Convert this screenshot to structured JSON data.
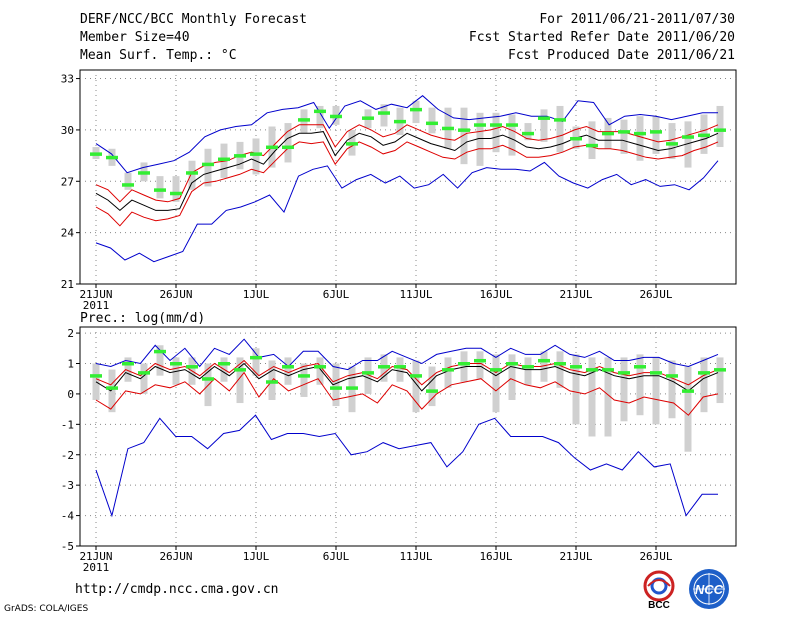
{
  "header": {
    "title": "DERF/NCC/BCC Monthly Forecast",
    "member_size": "Member Size=40",
    "variable": "Mean Surf. Temp.: °C",
    "period": "For 2011/06/21-2011/07/30",
    "refer_date": "Fcst Started Refer Date 2011/06/20",
    "produced_date": "Fcst Produced Date 2011/06/21"
  },
  "footer": {
    "url": "http://cmdp.ncc.cma.gov.cn",
    "credit": "GrADS: COLA/IGES",
    "logo_bcc": "BCC",
    "logo_ncc": "NCC"
  },
  "colors": {
    "ens_mean": "#000000",
    "spread": "#dd0000",
    "extremes": "#0000cc",
    "box": "#d0d0d0",
    "median": "#33ee33",
    "grid": "#888888"
  },
  "chart_data": [
    {
      "type": "line",
      "title": "Mean Surf. Temp.: °C",
      "x_tick_labels": [
        "21JUN",
        "26JUN",
        "1JUL",
        "6JUL",
        "11JUL",
        "16JUL",
        "21JUL",
        "26JUL"
      ],
      "x_tick_days": [
        0,
        5,
        10,
        15,
        20,
        25,
        30,
        35
      ],
      "x_sub_label": "2011",
      "days": 40,
      "ylim": [
        21,
        33.5
      ],
      "yticks": [
        21,
        24,
        27,
        30,
        33
      ],
      "series": [
        {
          "name": "mean",
          "values": [
            26.3,
            25.9,
            25.3,
            25.9,
            25.6,
            25.3,
            25.3,
            25.4,
            26.9,
            27.4,
            27.6,
            27.8,
            28.0,
            28.3,
            28.0,
            28.8,
            29.5,
            29.8,
            29.8,
            29.9,
            28.5,
            29.4,
            29.8,
            29.6,
            29.1,
            29.3,
            29.8,
            29.5,
            29.2,
            29.0,
            28.8,
            29.3,
            29.5,
            29.5,
            29.7,
            29.4,
            29.0,
            28.9,
            29.0,
            29.2,
            29.5,
            29.7,
            29.4,
            29.4,
            29.4,
            29.2,
            29.0,
            28.8,
            28.9,
            29.1,
            29.3,
            29.5,
            29.8
          ]
        },
        {
          "name": "upper",
          "values": [
            26.8,
            26.5,
            25.8,
            26.5,
            26.2,
            25.9,
            25.8,
            26.0,
            27.5,
            27.9,
            28.1,
            28.2,
            28.5,
            28.7,
            28.5,
            29.2,
            29.9,
            30.3,
            30.3,
            30.3,
            29.0,
            29.9,
            30.3,
            30.0,
            29.6,
            29.8,
            30.3,
            30.0,
            29.7,
            29.5,
            29.4,
            29.8,
            29.9,
            30.0,
            30.2,
            29.9,
            29.5,
            29.4,
            29.5,
            29.7,
            30.0,
            30.2,
            29.9,
            29.9,
            29.9,
            29.7,
            29.5,
            29.3,
            29.4,
            29.6,
            29.8,
            30.0,
            30.3
          ]
        },
        {
          "name": "lower",
          "values": [
            25.5,
            25.1,
            24.4,
            25.2,
            24.9,
            24.7,
            24.8,
            25.0,
            26.4,
            26.9,
            27.0,
            27.2,
            27.4,
            27.7,
            27.5,
            28.2,
            28.9,
            29.3,
            29.2,
            29.3,
            28.0,
            28.9,
            29.3,
            29.0,
            28.6,
            28.8,
            29.3,
            29.0,
            28.7,
            28.4,
            28.3,
            28.7,
            28.9,
            28.9,
            29.1,
            28.8,
            28.4,
            28.4,
            28.5,
            28.7,
            29.0,
            29.1,
            28.9,
            28.9,
            28.8,
            28.6,
            28.4,
            28.3,
            28.4,
            28.5,
            28.8,
            29.0,
            29.3
          ]
        }
      ],
      "max_line": [
        29.2,
        28.6,
        27.5,
        27.8,
        28.0,
        28.2,
        28.7,
        29.6,
        30.0,
        30.2,
        30.3,
        31.0,
        31.2,
        31.3,
        31.6,
        30.1,
        31.4,
        31.7,
        31.2,
        31.5,
        31.3,
        32.0,
        31.2,
        30.7,
        30.6,
        30.7,
        30.8,
        31.0,
        30.8,
        30.8,
        30.5,
        31.7,
        31.6,
        30.3,
        30.8,
        30.9,
        30.8,
        30.6,
        30.8,
        31.0,
        31.0
      ],
      "min_line": [
        23.4,
        23.1,
        22.4,
        22.8,
        22.3,
        22.6,
        22.9,
        24.5,
        24.5,
        25.3,
        25.5,
        25.8,
        26.2,
        25.2,
        27.3,
        27.7,
        27.9,
        26.6,
        27.1,
        27.4,
        26.9,
        27.3,
        26.6,
        26.8,
        27.4,
        26.6,
        27.5,
        27.8,
        27.7,
        27.7,
        27.6,
        28.1,
        27.3,
        26.9,
        26.6,
        27.1,
        27.4,
        26.8,
        27.1,
        26.7,
        26.8,
        26.5,
        27.2,
        28.2
      ],
      "medians": [
        28.6,
        28.4,
        26.8,
        27.5,
        26.5,
        26.3,
        27.5,
        28.0,
        28.3,
        28.5,
        28.6,
        29.0,
        29.0,
        30.6,
        31.1,
        30.8,
        29.2,
        30.7,
        31.0,
        30.5,
        31.2,
        30.4,
        30.1,
        30.0,
        30.3,
        30.3,
        30.3,
        29.8,
        30.7,
        30.6,
        29.5,
        29.1,
        29.8,
        29.9,
        29.8,
        29.9,
        29.2,
        29.6,
        29.7,
        30.0
      ],
      "box_low": [
        28.3,
        27.9,
        26.5,
        27.0,
        26.0,
        25.8,
        26.5,
        26.7,
        27.2,
        27.7,
        27.4,
        27.8,
        28.1,
        29.8,
        30.1,
        30.3,
        28.5,
        30.1,
        30.2,
        29.7,
        30.4,
        29.8,
        28.9,
        28.0,
        27.9,
        28.7,
        28.5,
        29.4,
        29.3,
        28.7,
        28.9,
        28.3,
        28.9,
        28.6,
        28.2,
        28.6,
        28.3,
        27.8,
        28.6,
        29.0
      ],
      "box_high": [
        29.0,
        28.9,
        27.5,
        28.1,
        27.3,
        27.3,
        28.2,
        28.9,
        29.2,
        29.3,
        29.5,
        30.2,
        30.4,
        31.2,
        31.4,
        31.4,
        30.0,
        31.2,
        31.5,
        31.3,
        31.7,
        31.3,
        31.3,
        31.3,
        31.0,
        31.0,
        30.9,
        30.4,
        31.2,
        31.4,
        30.2,
        30.5,
        30.7,
        30.6,
        30.8,
        30.8,
        30.4,
        30.5,
        30.9,
        31.4
      ]
    },
    {
      "type": "line",
      "title": "Prec.: log(mm/d)",
      "x_tick_labels": [
        "21JUN",
        "26JUN",
        "1JUL",
        "6JUL",
        "11JUL",
        "16JUL",
        "21JUL",
        "26JUL"
      ],
      "x_tick_days": [
        0,
        5,
        10,
        15,
        20,
        25,
        30,
        35
      ],
      "x_sub_label": "2011",
      "days": 40,
      "ylim": [
        -5,
        2.2
      ],
      "yticks": [
        -5,
        -4,
        -3,
        -2,
        -1,
        0,
        1,
        2
      ],
      "series": [
        {
          "name": "mean",
          "values": [
            0.4,
            0.1,
            0.7,
            0.5,
            0.9,
            0.7,
            0.8,
            0.5,
            0.9,
            0.6,
            1.0,
            0.5,
            0.8,
            0.6,
            0.8,
            0.9,
            0.3,
            0.5,
            0.6,
            0.4,
            0.8,
            0.7,
            0.1,
            0.6,
            0.8,
            0.9,
            0.9,
            0.6,
            0.9,
            0.8,
            0.8,
            0.9,
            0.7,
            0.6,
            0.8,
            0.6,
            0.5,
            0.6,
            0.6,
            0.4,
            0.1,
            0.5,
            0.7
          ]
        },
        {
          "name": "upper",
          "values": [
            0.5,
            0.3,
            0.8,
            0.6,
            1.0,
            0.8,
            0.9,
            0.6,
            1.0,
            0.7,
            1.1,
            0.6,
            0.9,
            0.7,
            0.9,
            1.0,
            0.4,
            0.6,
            0.7,
            0.5,
            0.9,
            0.8,
            0.3,
            0.7,
            0.9,
            1.0,
            1.0,
            0.7,
            1.0,
            0.9,
            0.9,
            1.0,
            0.8,
            0.7,
            0.9,
            0.7,
            0.6,
            0.7,
            0.7,
            0.5,
            0.3,
            0.6,
            0.8
          ]
        },
        {
          "name": "lower",
          "values": [
            -0.2,
            -0.5,
            0.1,
            0.0,
            0.3,
            0.2,
            0.4,
            0.0,
            0.5,
            0.1,
            0.7,
            -0.1,
            0.5,
            0.1,
            0.3,
            0.5,
            -0.2,
            -0.1,
            0.0,
            -0.3,
            0.3,
            0.1,
            -0.5,
            0.0,
            0.3,
            0.4,
            0.5,
            0.1,
            0.5,
            0.3,
            0.2,
            0.4,
            0.1,
            0.0,
            0.2,
            -0.2,
            -0.3,
            -0.1,
            -0.2,
            -0.3,
            -0.7,
            -0.1,
            0.0
          ]
        },
        {
          "name": "max",
          "values": [
            1.0,
            0.9,
            1.1,
            1.0,
            1.6,
            1.1,
            1.5,
            0.9,
            1.5,
            1.3,
            1.8,
            1.2,
            1.3,
            0.9,
            1.4,
            1.4,
            0.9,
            0.8,
            1.1,
            1.1,
            1.4,
            1.2,
            1.0,
            1.3,
            1.4,
            1.5,
            1.5,
            1.2,
            1.5,
            1.3,
            1.3,
            1.6,
            1.3,
            1.2,
            1.4,
            1.1,
            1.1,
            1.2,
            1.2,
            1.0,
            0.9,
            1.1,
            1.3
          ]
        },
        {
          "name": "min",
          "values": [
            -2.5,
            -4.0,
            -1.8,
            -1.6,
            -0.8,
            -1.4,
            -1.4,
            -1.8,
            -1.3,
            -1.2,
            -0.7,
            -1.5,
            -1.3,
            -1.3,
            -1.4,
            -1.3,
            -2.0,
            -1.9,
            -1.6,
            -1.8,
            -1.7,
            -1.6,
            -2.4,
            -1.9,
            -1.0,
            -0.8,
            -1.4,
            -1.4,
            -1.4,
            -1.6,
            -2.1,
            -2.5,
            -2.3,
            -2.5,
            -1.9,
            -2.4,
            -2.3,
            -4.0,
            -3.3,
            -3.3
          ]
        }
      ],
      "medians": [
        0.6,
        0.2,
        1.0,
        0.7,
        1.4,
        1.0,
        0.9,
        0.5,
        1.0,
        0.8,
        1.2,
        0.4,
        0.9,
        0.6,
        0.9,
        0.2,
        0.2,
        0.7,
        0.9,
        0.9,
        0.6,
        0.1,
        0.8,
        1.0,
        1.1,
        0.8,
        1.0,
        0.9,
        1.1,
        1.0,
        0.9,
        0.8,
        0.8,
        0.7,
        0.9,
        0.7,
        0.6,
        0.1,
        0.7,
        0.8
      ],
      "box_low": [
        -0.2,
        -0.6,
        0.4,
        0.0,
        0.6,
        0.3,
        0.3,
        -0.4,
        0.4,
        -0.3,
        0.6,
        -0.2,
        0.3,
        -0.1,
        0.3,
        -0.4,
        -0.6,
        0.0,
        0.4,
        0.4,
        -0.6,
        -0.4,
        0.2,
        0.4,
        0.5,
        -0.6,
        -0.2,
        0.3,
        0.4,
        0.2,
        -1.0,
        -1.4,
        -1.4,
        -0.9,
        -0.7,
        -1.0,
        -0.8,
        -1.9,
        -0.6,
        -0.3
      ],
      "box_high": [
        1.0,
        0.8,
        1.2,
        1.0,
        1.6,
        1.2,
        1.2,
        1.0,
        1.2,
        1.2,
        1.5,
        1.1,
        1.2,
        1.0,
        1.2,
        1.0,
        0.9,
        1.2,
        1.3,
        1.2,
        1.1,
        0.9,
        1.2,
        1.4,
        1.4,
        1.3,
        1.3,
        1.2,
        1.4,
        1.4,
        1.3,
        1.2,
        1.2,
        1.2,
        1.3,
        1.2,
        1.1,
        0.9,
        1.2,
        1.2
      ]
    }
  ]
}
